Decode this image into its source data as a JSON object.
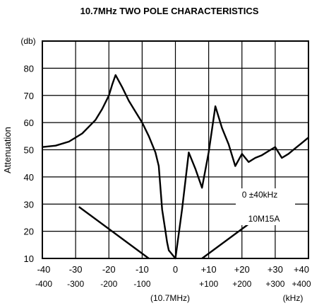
{
  "chart_data": {
    "type": "line",
    "title": "10.7MHz TWO POLE CHARACTERISTICS",
    "ylabel": "Attenuation",
    "yunit": "(db)",
    "xunit": "(kHz)",
    "center_label": "(10.7MHz)",
    "xlim": [
      -40,
      40
    ],
    "ylim": [
      10,
      90
    ],
    "grid": true,
    "x_ticks": [
      {
        "value": -40,
        "label": "-40",
        "label2": "-400"
      },
      {
        "value": -30,
        "label": "-30",
        "label2": "-300"
      },
      {
        "value": -20,
        "label": "-20",
        "label2": "-200"
      },
      {
        "value": -10,
        "label": "-10",
        "label2": "-100"
      },
      {
        "value": 0,
        "label": "0",
        "label2": ""
      },
      {
        "value": 10,
        "label": "+10",
        "label2": "+100"
      },
      {
        "value": 20,
        "label": "+20",
        "label2": "+200"
      },
      {
        "value": 30,
        "label": "+30",
        "label2": "+300"
      },
      {
        "value": 40,
        "label": "+40",
        "label2": "+400"
      }
    ],
    "y_ticks": [
      10,
      20,
      30,
      40,
      50,
      60,
      70,
      80
    ],
    "series": [
      {
        "name": "0 ±40kHz",
        "x": [
          -40,
          -36,
          -32,
          -28,
          -24,
          -22,
          -20,
          -19,
          -18,
          -16,
          -14,
          -12,
          -10,
          -8,
          -6,
          -5,
          -4,
          -3,
          -2.5,
          -2,
          0,
          2,
          4,
          6,
          8,
          10,
          12,
          14,
          16,
          18,
          20,
          22,
          24,
          26,
          28,
          30,
          32,
          34,
          36,
          38,
          40
        ],
        "y": [
          51,
          51.5,
          53,
          56,
          61,
          65,
          70,
          74,
          77.5,
          73,
          68,
          64,
          60,
          55,
          49,
          44,
          28,
          20,
          16,
          13,
          10,
          28,
          49,
          43,
          36,
          49,
          66,
          58,
          52,
          44,
          48.5,
          45.5,
          47,
          48,
          49.5,
          51,
          47,
          48.5,
          50.5,
          52.5,
          54.5
        ]
      },
      {
        "name": "10M15A",
        "x": [
          -29,
          -8,
          null,
          8,
          29
        ],
        "y": [
          29,
          10,
          null,
          10,
          29
        ]
      }
    ],
    "annotations": [
      "0 ±40kHz",
      "10M15A"
    ]
  }
}
